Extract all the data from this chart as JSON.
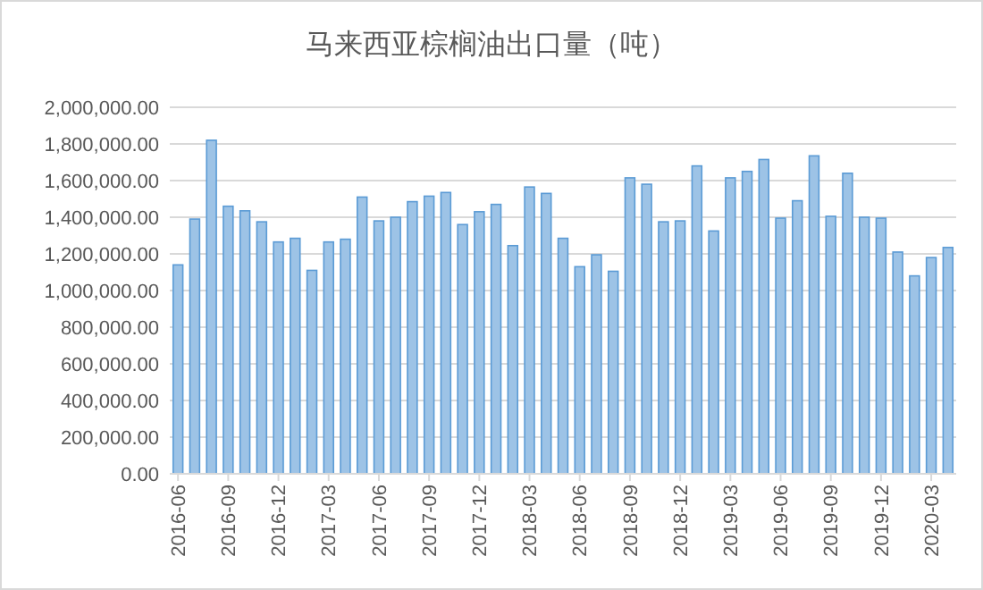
{
  "chart_data": {
    "type": "bar",
    "title": "马来西亚棕榈油出口量（吨）",
    "categories": [
      "2016-06",
      null,
      null,
      "2016-09",
      null,
      null,
      "2016-12",
      null,
      null,
      "2017-03",
      null,
      null,
      "2017-06",
      null,
      null,
      "2017-09",
      null,
      null,
      "2017-12",
      null,
      null,
      "2018-03",
      null,
      null,
      "2018-06",
      null,
      null,
      "2018-09",
      null,
      null,
      "2018-12",
      null,
      null,
      "2019-03",
      null,
      null,
      "2019-06",
      null,
      null,
      "2019-09",
      null,
      null,
      "2019-12",
      null,
      null,
      "2020-03",
      null
    ],
    "values": [
      1140000,
      1390000,
      1820000,
      1460000,
      1435000,
      1375000,
      1265000,
      1285000,
      1110000,
      1265000,
      1280000,
      1510000,
      1380000,
      1400000,
      1485000,
      1515000,
      1535000,
      1360000,
      1430000,
      1470000,
      1245000,
      1565000,
      1530000,
      1285000,
      1130000,
      1195000,
      1105000,
      1615000,
      1580000,
      1375000,
      1380000,
      1680000,
      1325000,
      1615000,
      1650000,
      1715000,
      1395000,
      1490000,
      1735000,
      1405000,
      1640000,
      1400000,
      1395000,
      1210000,
      1080000,
      1180000,
      1235000
    ],
    "color": "#9dc3e6",
    "ylim": [
      0,
      2000000
    ],
    "yticks": [
      {
        "value": 0,
        "label": "0.00"
      },
      {
        "value": 200000,
        "label": "200,000.00"
      },
      {
        "value": 400000,
        "label": "400,000.00"
      },
      {
        "value": 600000,
        "label": "600,000.00"
      },
      {
        "value": 800000,
        "label": "800,000.00"
      },
      {
        "value": 1000000,
        "label": "1,000,000.00"
      },
      {
        "value": 1200000,
        "label": "1,200,000.00"
      },
      {
        "value": 1400000,
        "label": "1,400,000.00"
      },
      {
        "value": 1600000,
        "label": "1,600,000.00"
      },
      {
        "value": 1800000,
        "label": "1,800,000.00"
      },
      {
        "value": 2000000,
        "label": "2,000,000.00"
      }
    ],
    "grid": "y"
  }
}
